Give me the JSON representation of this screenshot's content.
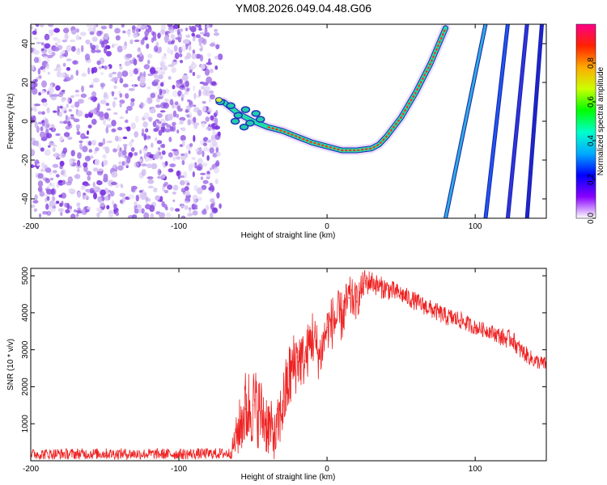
{
  "title": "YM08.2026.049.04.48.G06",
  "chart_data": [
    {
      "type": "heatmap",
      "name": "spectrogram",
      "xlabel": "Height of straight line (km)",
      "ylabel": "Frequency (Hz)",
      "xlim": [
        -200,
        148
      ],
      "ylim": [
        -50,
        50
      ],
      "xticks": [
        -200,
        -100,
        0,
        100
      ],
      "yticks": [
        -40,
        -20,
        0,
        20,
        40
      ],
      "noise_region_x": [
        -200,
        -72
      ],
      "main_trace": {
        "x": [
          -70,
          -60,
          -50,
          -40,
          -30,
          -20,
          -10,
          0,
          10,
          20,
          30,
          35,
          40,
          50,
          60,
          70,
          80
        ],
        "y": [
          10,
          4,
          0,
          -3,
          -5,
          -8,
          -11,
          -13,
          -15,
          -15,
          -14,
          -12,
          -8,
          2,
          15,
          30,
          48
        ]
      },
      "steep_traces": [
        {
          "x0": 80,
          "x1": 107,
          "color": "#33aadd"
        },
        {
          "x0": 107,
          "x1": 122,
          "color": "#2255ee"
        },
        {
          "x0": 122,
          "x1": 135,
          "color": "#3333dd"
        },
        {
          "x0": 135,
          "x1": 145,
          "color": "#2222cc"
        }
      ],
      "colorbar": {
        "label": "Normalized spectral amplitude",
        "range": [
          0.0,
          1.0
        ],
        "ticks": [
          "0.0",
          "0.2",
          "0.4",
          "0.6",
          "0.8"
        ],
        "colors": [
          "#ffffff",
          "#8800ff",
          "#0000ff",
          "#00aaff",
          "#00ffcc",
          "#00ff00",
          "#ccff00",
          "#ffaa00",
          "#ff2200",
          "#ff0088"
        ]
      }
    },
    {
      "type": "line",
      "name": "snr",
      "xlabel": "Height of straight line (km)",
      "ylabel": "SNR (10 * v/v)",
      "xlim": [
        -200,
        148
      ],
      "ylim": [
        0,
        5200
      ],
      "xticks": [
        -200,
        -100,
        0,
        100
      ],
      "yticks": [
        1000,
        2000,
        3000,
        4000,
        5000
      ],
      "series": [
        {
          "name": "SNR",
          "color": "#ee2222",
          "x": [
            -200,
            -150,
            -100,
            -65,
            -60,
            -55,
            -50,
            -45,
            -40,
            -35,
            -30,
            -25,
            -20,
            -15,
            -10,
            -5,
            0,
            5,
            10,
            15,
            20,
            25,
            30,
            35,
            40,
            50,
            60,
            70,
            80,
            90,
            100,
            110,
            120,
            125,
            130,
            140,
            148
          ],
          "y": [
            180,
            190,
            180,
            200,
            800,
            1400,
            1500,
            1300,
            1000,
            600,
            1500,
            2300,
            2800,
            2700,
            3400,
            2800,
            3600,
            3800,
            3900,
            4400,
            4300,
            4800,
            4850,
            4700,
            4650,
            4500,
            4300,
            4100,
            3900,
            3800,
            3600,
            3500,
            3300,
            3300,
            3000,
            2700,
            2600
          ],
          "noise": [
            150,
            150,
            150,
            150,
            700,
            1100,
            1100,
            1000,
            900,
            700,
            900,
            1000,
            900,
            700,
            800,
            700,
            600,
            800,
            700,
            600,
            500,
            400,
            300,
            300,
            300,
            250,
            250,
            250,
            250,
            250,
            200,
            200,
            250,
            250,
            250,
            200,
            200
          ]
        }
      ]
    }
  ]
}
